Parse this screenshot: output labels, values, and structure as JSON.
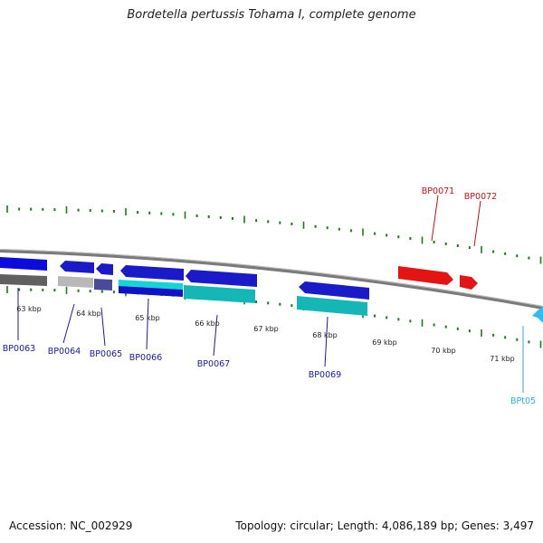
{
  "title": "Bordetella pertussis Tohama I, complete genome",
  "footer": {
    "accession": "Accession: NC_002929",
    "summary": "Topology: circular; Length: 4,086,189 bp; Genes: 3,497"
  },
  "colors": {
    "backbone": "#7a7a7a",
    "tick": "#1f7a1f",
    "plus_gene": "#0b0bdc",
    "minus_gene": "#1a1ac8",
    "rna_gene": "#e41414",
    "trna_gene": "#33bbee",
    "cds_cyan": "#14b6b6",
    "pseudo_grey": "#9a9a9a",
    "label_blue": "#1a1aa6",
    "label_red": "#cc1010",
    "label_cyan": "#33aadd"
  },
  "scale": {
    "kbp_labels": [
      "63 kbp",
      "64 kbp",
      "65 kbp",
      "66 kbp",
      "67 kbp",
      "68 kbp",
      "69 kbp",
      "70 kbp",
      "71 kbp"
    ]
  },
  "genes": [
    {
      "label": "BP0063",
      "color": "label_blue"
    },
    {
      "label": "BP0064",
      "color": "label_blue"
    },
    {
      "label": "BP0065",
      "color": "label_blue"
    },
    {
      "label": "BP0066",
      "color": "label_blue"
    },
    {
      "label": "BP0067",
      "color": "label_blue"
    },
    {
      "label": "BP0069",
      "color": "label_blue"
    },
    {
      "label": "BP0071",
      "color": "label_red"
    },
    {
      "label": "BP0072",
      "color": "label_red"
    },
    {
      "label": "BPt05",
      "color": "label_cyan"
    }
  ]
}
